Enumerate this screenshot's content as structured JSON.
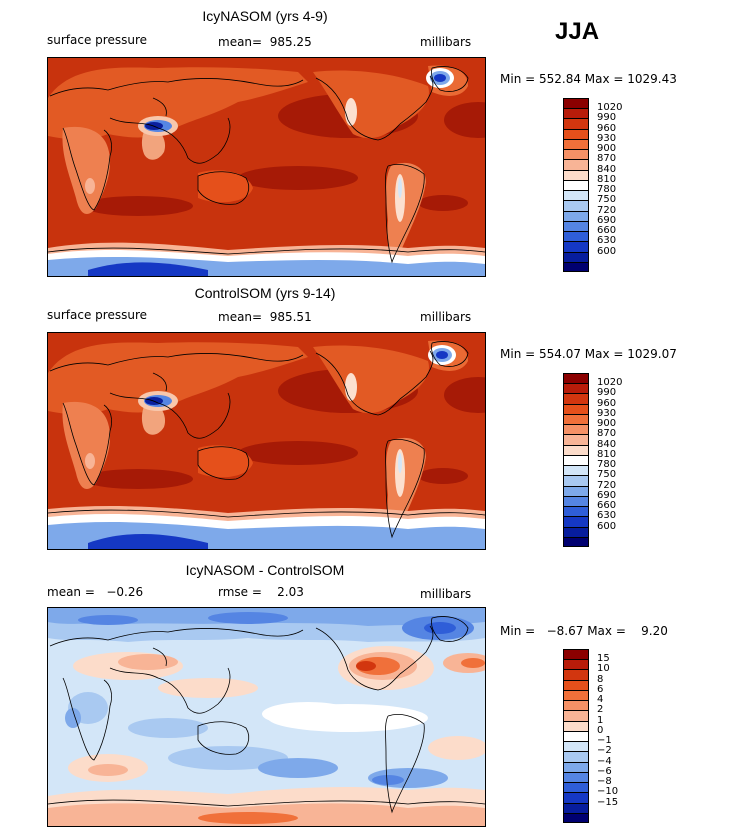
{
  "season": "JJA",
  "panels": [
    {
      "title": "IcyNASOM (yrs 4-9)",
      "left_label": "surface pressure",
      "center_label": "mean=  985.25",
      "units": "millibars",
      "minmax": "Min = 552.84 Max = 1029.43",
      "colorbar": {
        "labels": [
          "1020",
          "990",
          "960",
          "930",
          "900",
          "870",
          "840",
          "810",
          "780",
          "750",
          "720",
          "690",
          "660",
          "630",
          "600"
        ],
        "colors": [
          "#8b0000",
          "#b81c0a",
          "#d2360f",
          "#e5501b",
          "#f0703a",
          "#f59166",
          "#f8b496",
          "#fcdcca",
          "#ffffff",
          "#d3e6f8",
          "#a9c9f1",
          "#7ea9ea",
          "#5585e3",
          "#2f5ed8",
          "#1538c4",
          "#071d9d",
          "#000070"
        ]
      }
    },
    {
      "title": "ControlSOM (yrs 9-14)",
      "left_label": "surface pressure",
      "center_label": "mean=  985.51",
      "units": "millibars",
      "minmax": "Min = 554.07 Max = 1029.07",
      "colorbar": {
        "labels": [
          "1020",
          "990",
          "960",
          "930",
          "900",
          "870",
          "840",
          "810",
          "780",
          "750",
          "720",
          "690",
          "660",
          "630",
          "600"
        ],
        "colors": [
          "#8b0000",
          "#b81c0a",
          "#d2360f",
          "#e5501b",
          "#f0703a",
          "#f59166",
          "#f8b496",
          "#fcdcca",
          "#ffffff",
          "#d3e6f8",
          "#a9c9f1",
          "#7ea9ea",
          "#5585e3",
          "#2f5ed8",
          "#1538c4",
          "#071d9d",
          "#000070"
        ]
      }
    },
    {
      "title": "IcyNASOM - ControlSOM",
      "left_label": "mean =   −0.26",
      "center_label": "rmse =    2.03",
      "units": "millibars",
      "minmax": "Min =   −8.67 Max =    9.20",
      "colorbar": {
        "labels": [
          "15",
          "10",
          "8",
          "6",
          "4",
          "2",
          "1",
          "0",
          "−1",
          "−2",
          "−4",
          "−6",
          "−8",
          "−10",
          "−15"
        ],
        "colors": [
          "#8b0000",
          "#b81c0a",
          "#d2360f",
          "#e5501b",
          "#f0703a",
          "#f59166",
          "#f8b496",
          "#fcdcca",
          "#ffffff",
          "#d3e6f8",
          "#a9c9f1",
          "#7ea9ea",
          "#5585e3",
          "#2f5ed8",
          "#1538c4",
          "#071d9d",
          "#000070"
        ]
      }
    }
  ]
}
